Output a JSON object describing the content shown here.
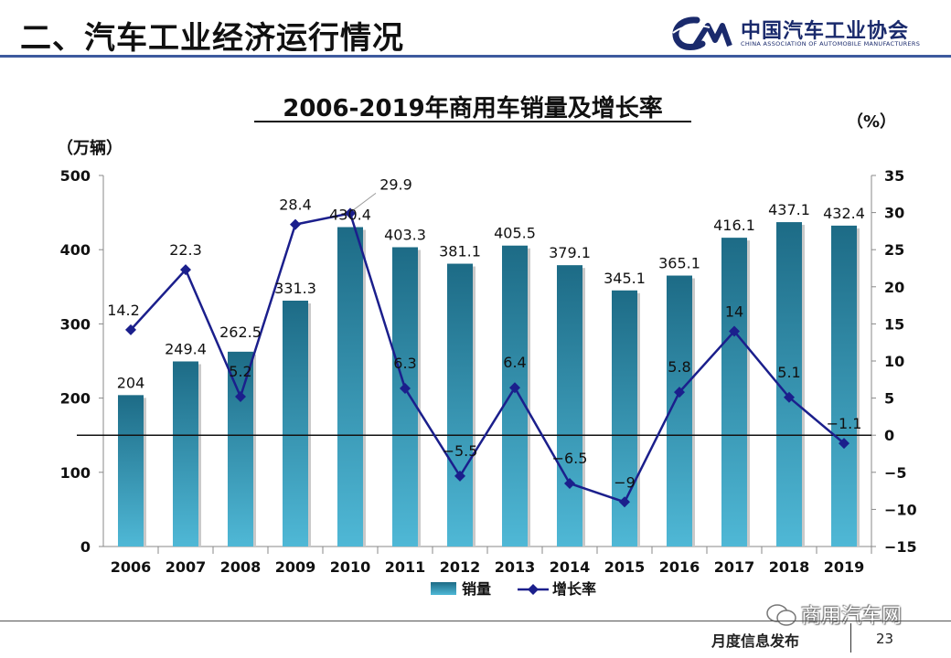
{
  "slide": {
    "title": "二、汽车工业经济运行情况",
    "logo_cn": "中国汽车工业协会",
    "logo_en": "CHINA ASSOCIATION OF AUTOMOBILE MANUFACTURERS",
    "footer_text": "月度信息发布",
    "page_number": "23",
    "watermark": "商用汽车网"
  },
  "colors": {
    "bar_top": "#1d6b86",
    "bar_bottom": "#4fb8d6",
    "line": "#1b1f8c",
    "title_rule": "#3d5a9e"
  },
  "chart_data": {
    "type": "bar",
    "title": "2006-2019年商用车销量及增长率",
    "left_unit": "（万辆）",
    "right_unit": "（%）",
    "categories": [
      "2006",
      "2007",
      "2008",
      "2009",
      "2010",
      "2011",
      "2012",
      "2013",
      "2014",
      "2015",
      "2016",
      "2017",
      "2018",
      "2019"
    ],
    "series": [
      {
        "name": "销量",
        "type": "bar",
        "axis": "left",
        "values": [
          204,
          249.4,
          262.5,
          331.3,
          430.4,
          403.3,
          381.1,
          405.5,
          379.1,
          345.1,
          365.1,
          416.1,
          437.1,
          432.4
        ],
        "labels": [
          "204",
          "249.4",
          "262.5",
          "331.3",
          "430.4",
          "403.3",
          "381.1",
          "405.5",
          "379.1",
          "345.1",
          "365.1",
          "416.1",
          "437.1",
          "432.4"
        ]
      },
      {
        "name": "增长率",
        "type": "line",
        "axis": "right",
        "values": [
          14.2,
          22.3,
          5.2,
          28.4,
          29.9,
          6.3,
          -5.5,
          6.4,
          -6.5,
          -9,
          5.8,
          14,
          5.1,
          -1.1
        ],
        "labels": [
          "14.2",
          "22.3",
          "5.2",
          "28.4",
          "29.9",
          "6.3",
          "−5.5",
          "6.4",
          "−6.5",
          "−9",
          "5.8",
          "14",
          "5.1",
          "−1.1"
        ]
      }
    ],
    "y_left": {
      "min": 0,
      "max": 500,
      "ticks": [
        "0",
        "100",
        "200",
        "300",
        "400",
        "500"
      ]
    },
    "y_right": {
      "min": -15,
      "max": 35,
      "ticks": [
        "−15",
        "−10",
        "−5",
        "0",
        "5",
        "10",
        "15",
        "20",
        "25",
        "30",
        "35"
      ]
    },
    "legend_position": "bottom",
    "grid": false
  }
}
